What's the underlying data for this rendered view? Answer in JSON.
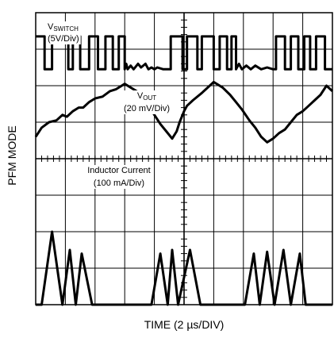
{
  "chart_data": {
    "type": "line",
    "xlabel": "TIME (2 µs/DIV)",
    "ylabel": "PFM MODE",
    "grid": true,
    "x_divisions": 10,
    "y_divisions": 8,
    "traces": [
      {
        "name_main": "V",
        "name_sub": "SWITCH",
        "scale": "(5V/Div)",
        "points": [
          [
            0.0,
            7.35
          ],
          [
            0.3,
            7.35
          ],
          [
            0.3,
            6.45
          ],
          [
            0.55,
            6.45
          ],
          [
            0.55,
            7.35
          ],
          [
            1.1,
            7.35
          ],
          [
            1.1,
            6.45
          ],
          [
            1.25,
            6.45
          ],
          [
            1.25,
            7.35
          ],
          [
            1.5,
            7.35
          ],
          [
            1.5,
            6.45
          ],
          [
            1.8,
            6.45
          ],
          [
            1.8,
            7.35
          ],
          [
            2.1,
            7.35
          ],
          [
            2.1,
            6.45
          ],
          [
            2.35,
            6.45
          ],
          [
            2.35,
            7.35
          ],
          [
            2.6,
            7.35
          ],
          [
            2.6,
            6.45
          ],
          [
            2.8,
            6.45
          ],
          [
            2.8,
            7.35
          ],
          [
            3.0,
            7.35
          ],
          [
            3.0,
            6.45
          ],
          [
            3.05,
            6.6
          ],
          [
            3.1,
            6.45
          ],
          [
            3.2,
            6.55
          ],
          [
            3.3,
            6.45
          ],
          [
            3.45,
            6.6
          ],
          [
            3.55,
            6.5
          ],
          [
            3.7,
            6.6
          ],
          [
            3.8,
            6.45
          ],
          [
            3.9,
            6.5
          ],
          [
            4.0,
            6.45
          ],
          [
            4.1,
            6.5
          ],
          [
            4.3,
            6.45
          ],
          [
            4.55,
            6.45
          ],
          [
            4.55,
            7.35
          ],
          [
            4.95,
            7.35
          ],
          [
            4.95,
            6.45
          ],
          [
            5.1,
            6.45
          ],
          [
            5.1,
            7.35
          ],
          [
            5.45,
            7.35
          ],
          [
            5.45,
            6.45
          ],
          [
            5.6,
            6.45
          ],
          [
            5.6,
            7.35
          ],
          [
            6.0,
            7.35
          ],
          [
            6.0,
            6.45
          ],
          [
            6.2,
            6.45
          ],
          [
            6.2,
            7.35
          ],
          [
            6.45,
            7.35
          ],
          [
            6.45,
            6.45
          ],
          [
            6.6,
            6.45
          ],
          [
            6.6,
            7.35
          ],
          [
            6.75,
            7.35
          ],
          [
            6.75,
            6.45
          ],
          [
            6.85,
            6.6
          ],
          [
            6.95,
            6.45
          ],
          [
            7.1,
            6.55
          ],
          [
            7.25,
            6.45
          ],
          [
            7.4,
            6.55
          ],
          [
            7.6,
            6.45
          ],
          [
            7.8,
            6.5
          ],
          [
            8.0,
            6.45
          ],
          [
            8.1,
            6.45
          ],
          [
            8.1,
            7.35
          ],
          [
            8.4,
            7.35
          ],
          [
            8.4,
            6.45
          ],
          [
            8.6,
            6.45
          ],
          [
            8.6,
            7.35
          ],
          [
            8.85,
            7.35
          ],
          [
            8.85,
            6.45
          ],
          [
            9.05,
            6.45
          ],
          [
            9.05,
            7.35
          ],
          [
            9.25,
            7.35
          ],
          [
            9.25,
            6.45
          ],
          [
            9.45,
            6.45
          ],
          [
            9.45,
            7.35
          ],
          [
            9.75,
            7.35
          ],
          [
            9.75,
            6.45
          ],
          [
            10.0,
            6.45
          ]
        ]
      },
      {
        "name_main": "V",
        "name_sub": "OUT",
        "scale": "(20 mV/Div)",
        "points": [
          [
            0.0,
            4.6
          ],
          [
            0.2,
            4.85
          ],
          [
            0.45,
            5.0
          ],
          [
            0.7,
            5.05
          ],
          [
            0.9,
            5.2
          ],
          [
            1.05,
            5.15
          ],
          [
            1.25,
            5.3
          ],
          [
            1.45,
            5.4
          ],
          [
            1.6,
            5.4
          ],
          [
            1.8,
            5.55
          ],
          [
            2.0,
            5.65
          ],
          [
            2.25,
            5.7
          ],
          [
            2.5,
            5.85
          ],
          [
            2.7,
            5.9
          ],
          [
            3.0,
            6.05
          ],
          [
            3.2,
            5.95
          ],
          [
            3.4,
            5.85
          ],
          [
            3.6,
            5.65
          ],
          [
            3.8,
            5.45
          ],
          [
            4.0,
            5.2
          ],
          [
            4.2,
            4.95
          ],
          [
            4.4,
            4.75
          ],
          [
            4.6,
            4.55
          ],
          [
            4.75,
            4.75
          ],
          [
            4.85,
            5.0
          ],
          [
            5.0,
            5.3
          ],
          [
            5.1,
            5.45
          ],
          [
            5.3,
            5.6
          ],
          [
            5.6,
            5.8
          ],
          [
            6.0,
            6.1
          ],
          [
            6.3,
            5.95
          ],
          [
            6.55,
            5.75
          ],
          [
            6.75,
            5.55
          ],
          [
            6.95,
            5.35
          ],
          [
            7.2,
            5.05
          ],
          [
            7.4,
            4.85
          ],
          [
            7.6,
            4.6
          ],
          [
            7.8,
            4.45
          ],
          [
            8.0,
            4.55
          ],
          [
            8.2,
            4.7
          ],
          [
            8.4,
            4.8
          ],
          [
            8.6,
            5.0
          ],
          [
            8.8,
            5.2
          ],
          [
            9.0,
            5.3
          ],
          [
            9.2,
            5.45
          ],
          [
            9.4,
            5.6
          ],
          [
            9.6,
            5.75
          ],
          [
            9.8,
            6.0
          ],
          [
            10.0,
            5.85
          ]
        ]
      },
      {
        "name_main": "Inductor Current",
        "name_sub": "",
        "scale": "(100 mA/Div)",
        "points": [
          [
            0.0,
            0.0
          ],
          [
            0.2,
            0.0
          ],
          [
            0.55,
            2.0
          ],
          [
            0.9,
            0.0
          ],
          [
            1.15,
            1.5
          ],
          [
            1.35,
            0.0
          ],
          [
            1.55,
            1.4
          ],
          [
            1.9,
            0.0
          ],
          [
            3.9,
            0.0
          ],
          [
            4.2,
            1.4
          ],
          [
            4.45,
            0.0
          ],
          [
            4.6,
            1.5
          ],
          [
            4.8,
            0.0
          ],
          [
            5.2,
            1.5
          ],
          [
            5.55,
            0.0
          ],
          [
            7.05,
            0.0
          ],
          [
            7.35,
            1.4
          ],
          [
            7.55,
            0.0
          ],
          [
            7.8,
            1.45
          ],
          [
            8.05,
            0.0
          ],
          [
            8.35,
            1.5
          ],
          [
            8.6,
            0.0
          ],
          [
            8.9,
            1.4
          ],
          [
            9.1,
            0.0
          ],
          [
            10.0,
            0.0
          ]
        ]
      }
    ]
  }
}
